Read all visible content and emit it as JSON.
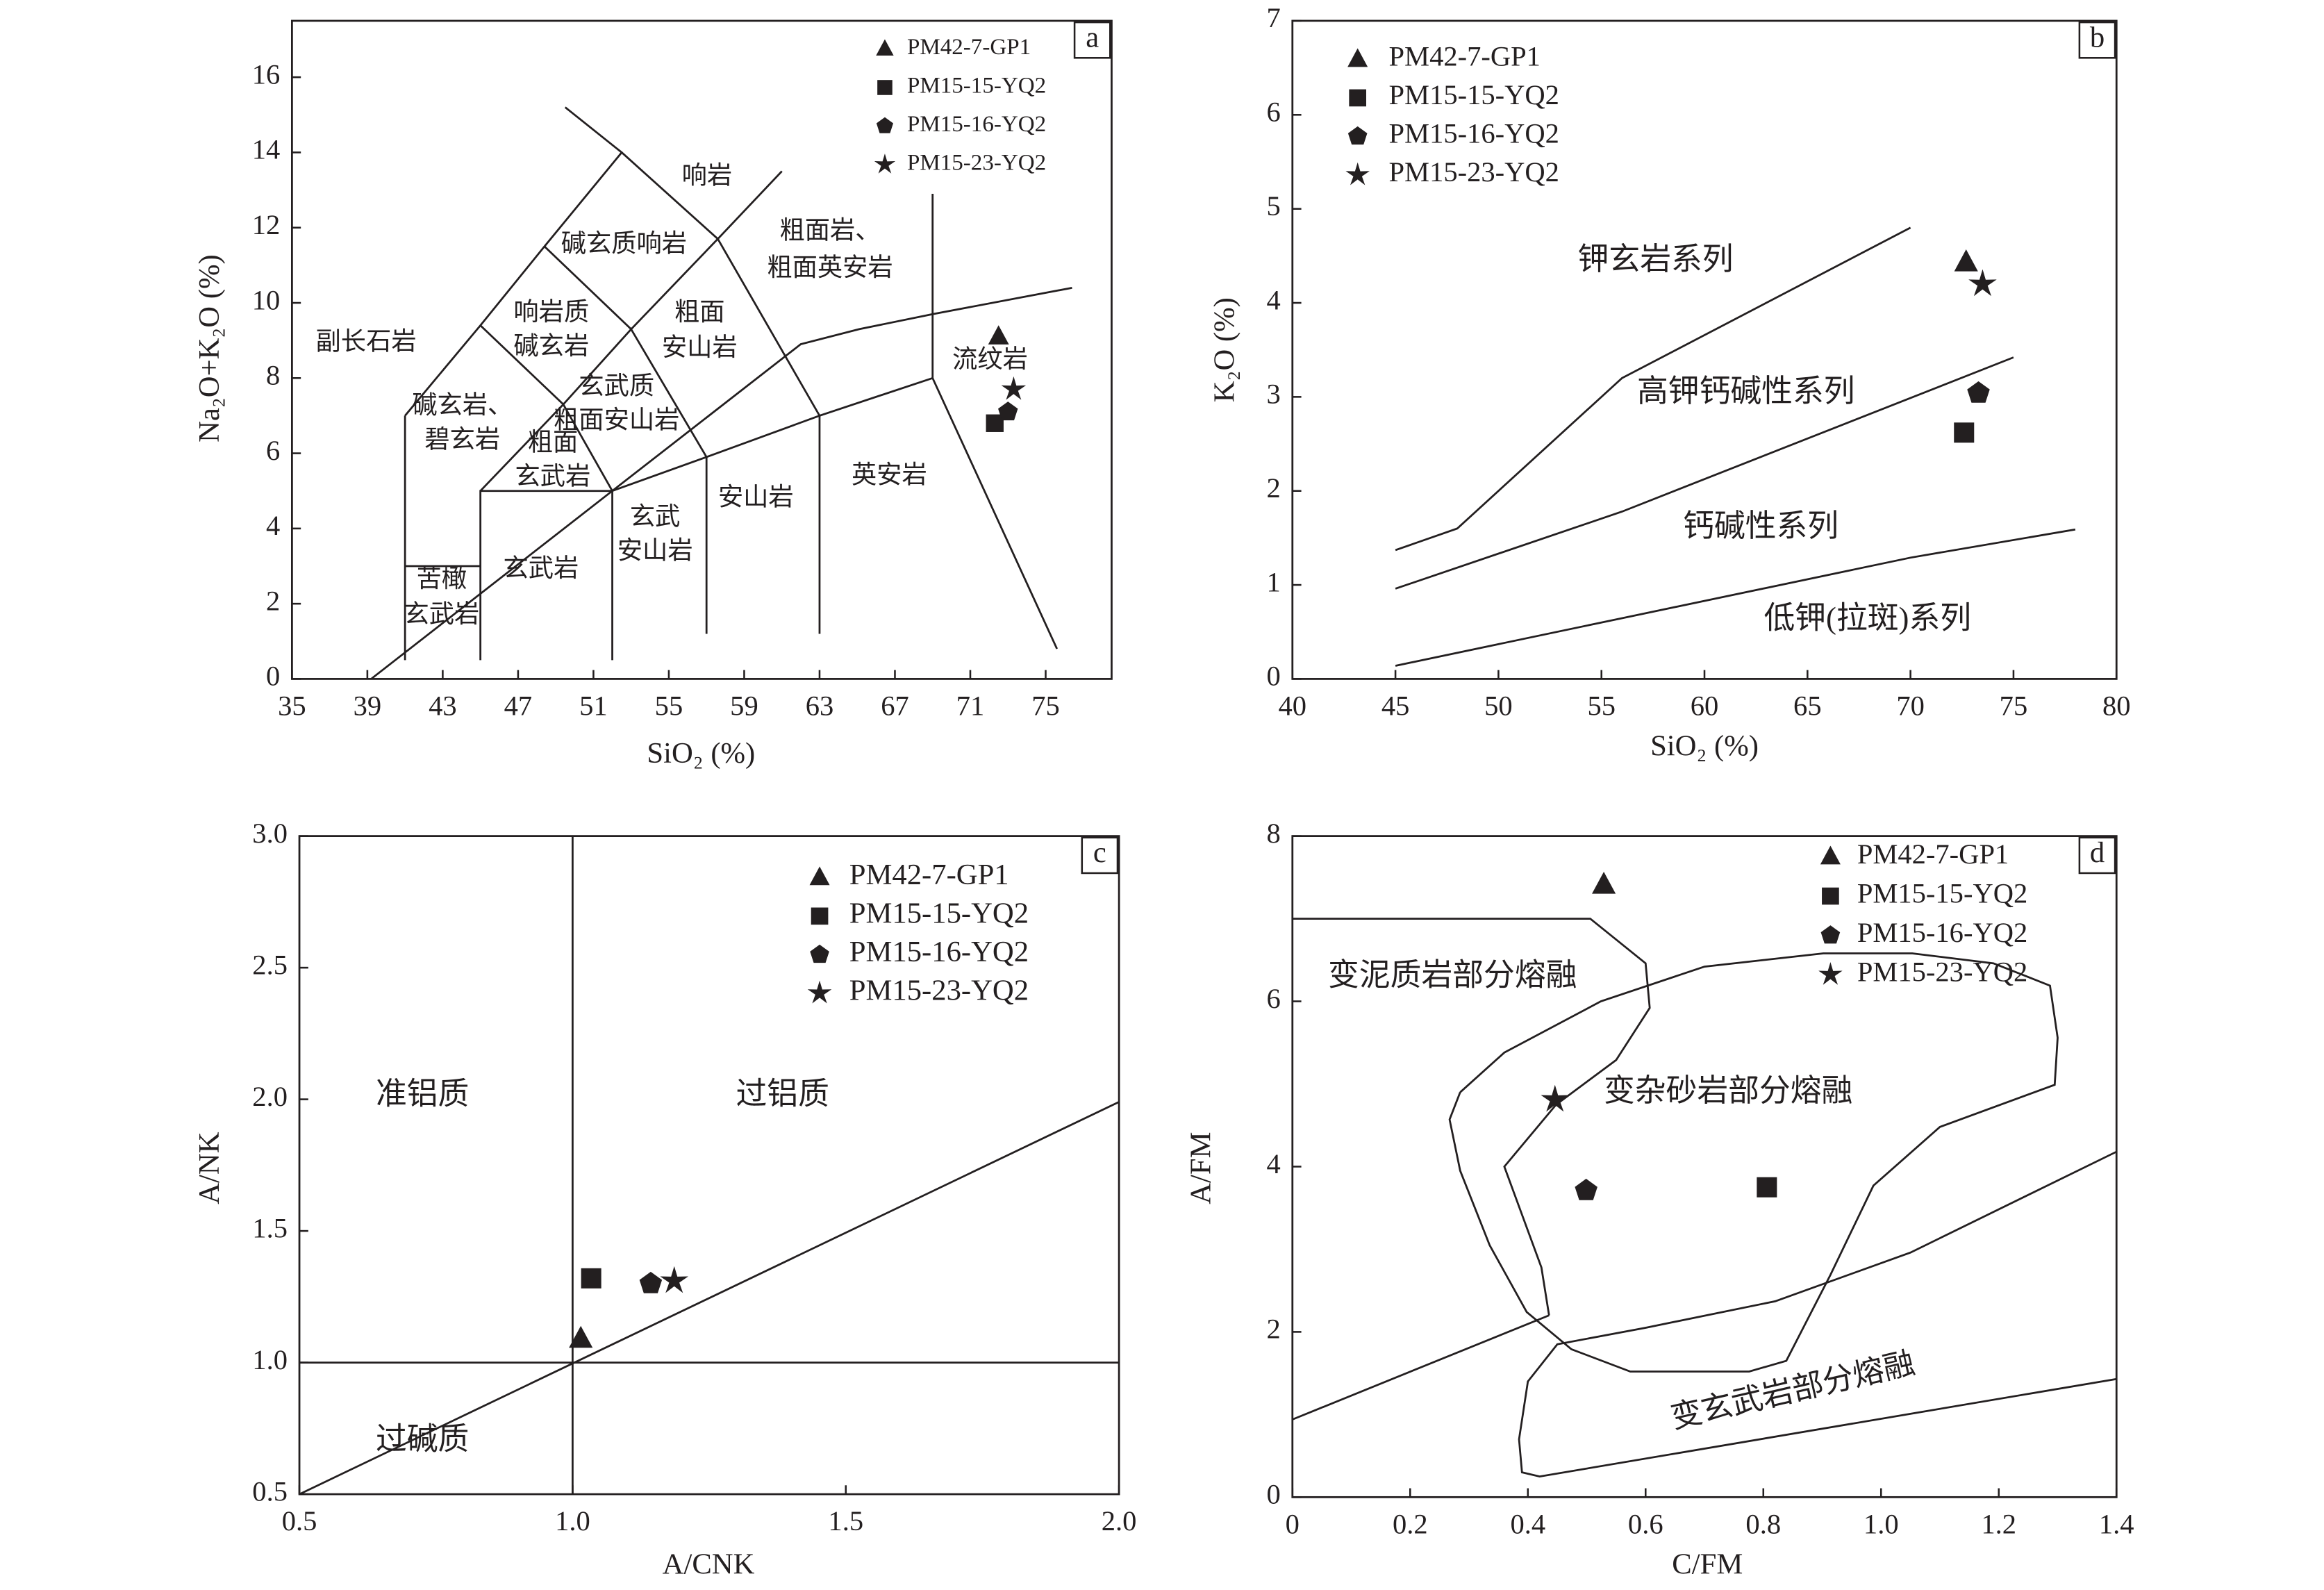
{
  "chart_data": [
    {
      "type": "scatter",
      "panel_label": "a",
      "xlabel": "SiO₂ (%)",
      "ylabel": "Na₂O+K₂O (%)",
      "xlim": [
        35,
        78.5
      ],
      "ylim": [
        0,
        17.5
      ],
      "xticks": [
        35,
        39,
        43,
        47,
        51,
        55,
        59,
        63,
        67,
        71,
        75
      ],
      "yticks": [
        0,
        2,
        4,
        6,
        8,
        10,
        12,
        14,
        16
      ],
      "series": [
        {
          "name": "PM42-7-GP1",
          "marker": "triangle",
          "color": "#231f20",
          "x": [
            72.5
          ],
          "values": [
            9.1
          ]
        },
        {
          "name": "PM15-15-YQ2",
          "marker": "square",
          "color": "#231f20",
          "x": [
            72.3
          ],
          "values": [
            6.8
          ]
        },
        {
          "name": "PM15-16-YQ2",
          "marker": "pentagon",
          "color": "#231f20",
          "x": [
            73.0
          ],
          "values": [
            7.1
          ]
        },
        {
          "name": "PM15-23-YQ2",
          "marker": "star",
          "color": "#231f20",
          "x": [
            73.3
          ],
          "values": [
            7.7
          ]
        }
      ],
      "boundaries": [
        {
          "x": [
            39.2,
            52,
            62,
            65.1,
            69,
            76.4
          ],
          "y": [
            0,
            5,
            8.9,
            9.3,
            9.7,
            10.4
          ]
        },
        {
          "x": [
            52,
            57,
            63,
            69,
            75.6
          ],
          "y": [
            5,
            5.9,
            7,
            8,
            0.8
          ]
        },
        {
          "x": [
            45,
            45,
            52,
            52
          ],
          "y": [
            0.5,
            5,
            5,
            0.5
          ]
        },
        {
          "x": [
            57,
            57
          ],
          "y": [
            5.9,
            1.2
          ]
        },
        {
          "x": [
            63,
            63
          ],
          "y": [
            7,
            1.2
          ]
        },
        {
          "x": [
            41,
            41
          ],
          "y": [
            0.5,
            7
          ]
        },
        {
          "x": [
            41,
            45
          ],
          "y": [
            3,
            3
          ]
        },
        {
          "x": [
            41,
            45,
            48.4,
            52.5,
            49.5
          ],
          "y": [
            7,
            9.4,
            11.5,
            14,
            15.2
          ]
        },
        {
          "x": [
            45,
            49.4,
            52
          ],
          "y": [
            5,
            7.3,
            5
          ]
        },
        {
          "x": [
            45,
            49.4,
            53,
            57
          ],
          "y": [
            9.4,
            7.3,
            9.3,
            5.9
          ]
        },
        {
          "x": [
            48.4,
            53,
            57.6,
            63
          ],
          "y": [
            11.5,
            9.3,
            11.7,
            7
          ]
        },
        {
          "x": [
            52.5,
            57.6,
            61
          ],
          "y": [
            14,
            11.7,
            13.5
          ]
        },
        {
          "x": [
            69,
            69
          ],
          "y": [
            8,
            12.9
          ]
        }
      ],
      "annotations": [
        "副长石岩",
        "碱玄岩、",
        "碧玄岩",
        "响岩质",
        "碱玄岩",
        "碱玄质响岩",
        "响岩",
        "粗面岩、",
        "粗面英安岩",
        "粗面",
        "安山岩",
        "玄武质",
        "粗面安山岩",
        "粗面",
        "玄武岩",
        "流纹岩",
        "英安岩",
        "安山岩",
        "玄武",
        "安山岩",
        "玄武岩",
        "苦橄",
        "玄武岩"
      ]
    },
    {
      "type": "scatter",
      "panel_label": "b",
      "xlabel": "SiO₂ (%)",
      "ylabel": "K₂O (%)",
      "xlim": [
        40,
        80
      ],
      "ylim": [
        0,
        7
      ],
      "xticks": [
        40,
        45,
        50,
        55,
        60,
        65,
        70,
        75,
        80
      ],
      "yticks": [
        0,
        1,
        2,
        3,
        4,
        5,
        6,
        7
      ],
      "series": [
        {
          "name": "PM42-7-GP1",
          "marker": "triangle",
          "color": "#231f20",
          "x": [
            72.7
          ],
          "values": [
            4.43
          ]
        },
        {
          "name": "PM15-15-YQ2",
          "marker": "square",
          "color": "#231f20",
          "x": [
            72.6
          ],
          "values": [
            2.62
          ]
        },
        {
          "name": "PM15-16-YQ2",
          "marker": "pentagon",
          "color": "#231f20",
          "x": [
            73.3
          ],
          "values": [
            3.04
          ]
        },
        {
          "name": "PM15-23-YQ2",
          "marker": "star",
          "color": "#231f20",
          "x": [
            73.5
          ],
          "values": [
            4.2
          ]
        }
      ],
      "boundaries": [
        {
          "x": [
            45,
            48,
            56,
            70
          ],
          "y": [
            1.37,
            1.6,
            3.2,
            4.8
          ]
        },
        {
          "x": [
            45,
            56,
            75
          ],
          "y": [
            0.96,
            1.78,
            3.42
          ]
        },
        {
          "x": [
            45,
            70,
            78
          ],
          "y": [
            0.14,
            1.29,
            1.59
          ]
        }
      ],
      "annotations": [
        "钾玄岩系列",
        "高钾钙碱性系列",
        "钙碱性系列",
        "低钾(拉斑)系列"
      ]
    },
    {
      "type": "scatter",
      "panel_label": "c",
      "xlabel": "A/CNK",
      "ylabel": "A/NK",
      "xlim": [
        0.5,
        2.0
      ],
      "ylim": [
        0.5,
        3.0
      ],
      "xticks": [
        0.5,
        {
          "value": 1,
          "label": "1.0"
        },
        1.5,
        {
          "value": 2,
          "label": "2.0"
        }
      ],
      "yticks": [
        0.5,
        {
          "value": 1,
          "label": "1.0"
        },
        1.5,
        {
          "value": 2,
          "label": "2.0"
        },
        2.5,
        {
          "value": 3,
          "label": "3.0"
        }
      ],
      "series": [
        {
          "name": "PM42-7-GP1",
          "marker": "triangle",
          "color": "#231f20",
          "x": [
            1.015
          ],
          "values": [
            1.09
          ]
        },
        {
          "name": "PM15-15-YQ2",
          "marker": "square",
          "color": "#231f20",
          "x": [
            1.034
          ],
          "values": [
            1.32
          ]
        },
        {
          "name": "PM15-16-YQ2",
          "marker": "pentagon",
          "color": "#231f20",
          "x": [
            1.143
          ],
          "values": [
            1.3
          ]
        },
        {
          "name": "PM15-23-YQ2",
          "marker": "star",
          "color": "#231f20",
          "x": [
            1.186
          ],
          "values": [
            1.31
          ]
        }
      ],
      "boundaries": [
        {
          "x": [
            1,
            1
          ],
          "y": [
            0.5,
            3
          ]
        },
        {
          "x": [
            0.5,
            2
          ],
          "y": [
            1,
            1
          ]
        },
        {
          "x": [
            0.5,
            2
          ],
          "y": [
            0.5,
            1.99
          ]
        }
      ],
      "annotations": [
        "准铝质",
        "过铝质",
        "过碱质"
      ]
    },
    {
      "type": "scatter",
      "panel_label": "d",
      "xlabel": "C/FM",
      "ylabel": "A/FM",
      "xlim": [
        0,
        1.4
      ],
      "ylim": [
        0,
        8
      ],
      "xticks": [
        0,
        0.2,
        0.4,
        0.6,
        0.8,
        {
          "value": 1,
          "label": "1.0"
        },
        1.2,
        1.4
      ],
      "yticks": [
        0,
        2,
        4,
        6,
        8
      ],
      "series": [
        {
          "name": "PM42-7-GP1",
          "marker": "triangle",
          "color": "#231f20",
          "x": [
            0.529
          ],
          "values": [
            7.41
          ]
        },
        {
          "name": "PM15-15-YQ2",
          "marker": "square",
          "color": "#231f20",
          "x": [
            0.806
          ],
          "values": [
            3.75
          ]
        },
        {
          "name": "PM15-16-YQ2",
          "marker": "pentagon",
          "color": "#231f20",
          "x": [
            0.499
          ],
          "values": [
            3.71
          ]
        },
        {
          "name": "PM15-23-YQ2",
          "marker": "star",
          "color": "#231f20",
          "x": [
            0.446
          ],
          "values": [
            4.81
          ]
        }
      ],
      "boundaries": [
        {
          "x": [
            0,
            0.506,
            0.6,
            0.607,
            0.55,
            0.448,
            0.36,
            0.423,
            0.436
          ],
          "y": [
            7,
            7,
            6.46,
            5.92,
            5.29,
            4.75,
            4.0,
            2.78,
            2.2
          ]
        },
        {
          "x": [
            0,
            0.436
          ],
          "y": [
            0.94,
            2.2
          ]
        },
        {
          "x": [
            0.285,
            0.36,
            0.524,
            0.7,
            0.902,
            1.053,
            1.191,
            1.287,
            1.3,
            1.295,
            1.1,
            0.987,
            0.914,
            0.839,
            0.776,
            0.574,
            0.474,
            0.398,
            0.335,
            0.285,
            0.267,
            0.285
          ],
          "y": [
            4.9,
            5.38,
            6.0,
            6.42,
            6.58,
            6.58,
            6.46,
            6.19,
            5.56,
            4.99,
            4.48,
            3.77,
            2.69,
            1.65,
            1.52,
            1.52,
            1.79,
            2.24,
            3.05,
            3.95,
            4.57,
            4.9
          ]
        },
        {
          "x": [
            1.4,
            1.05,
            0.82,
            0.6,
            0.45,
            0.4,
            0.385,
            0.39,
            0.42,
            1.4
          ],
          "y": [
            4.18,
            2.96,
            2.37,
            2.05,
            1.85,
            1.4,
            0.7,
            0.3,
            0.25,
            1.43
          ]
        }
      ],
      "annotations": [
        "变泥质岩部分熔融",
        "变杂砂岩部分熔融",
        "变玄武岩部分熔融"
      ]
    }
  ]
}
